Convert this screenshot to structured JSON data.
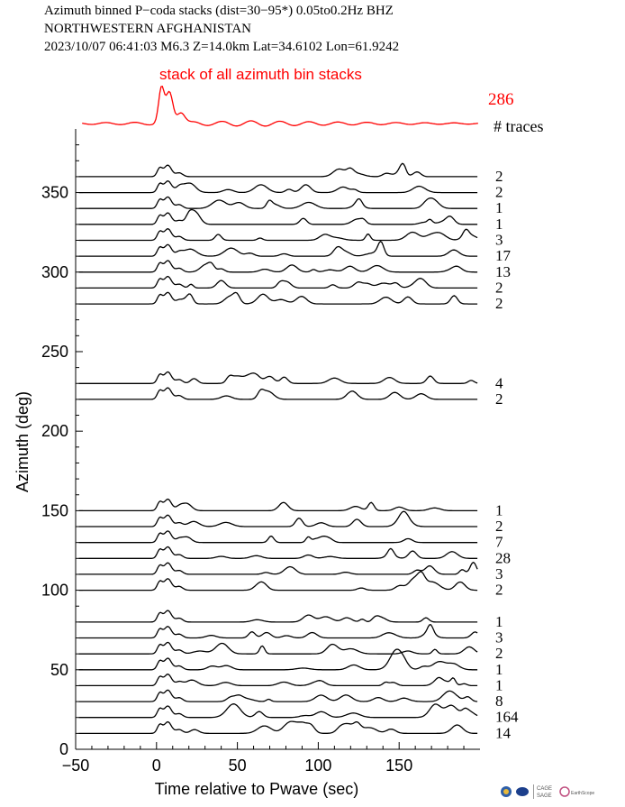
{
  "header": {
    "line1": "Azimuth binned P−coda stacks (dist=30−95*)  0.05to0.2Hz  BHZ",
    "line2": "NORTHWESTERN AFGHANISTAN",
    "line3": "2023/10/07  06:41:03  M6.3  Z=14.0km Lat=34.6102 Lon=61.9242"
  },
  "stack": {
    "title": "stack of all azimuth bin stacks",
    "total_traces": "286",
    "traces_label": "# traces",
    "color": "#ff0000"
  },
  "logos": {
    "cage_sage": "CAGE\nSAGE",
    "earthscope": "EarthScope"
  },
  "chart_data": {
    "type": "line",
    "xlabel": "Time relative to Pwave (sec)",
    "ylabel": "Azimuth (deg)",
    "xlim": [
      -50,
      200
    ],
    "ylim": [
      0,
      390
    ],
    "xticks": [
      -50,
      0,
      50,
      100,
      150
    ],
    "xtick_labels": [
      "−50",
      "0",
      "50",
      "100",
      "150"
    ],
    "yticks": [
      0,
      50,
      100,
      150,
      200,
      250,
      300,
      350
    ],
    "ytick_labels": [
      "0",
      "50",
      "100",
      "150",
      "200",
      "250",
      "300",
      "350"
    ],
    "trace_color": "#000000",
    "bins": [
      {
        "azimuth": 360,
        "count": "2"
      },
      {
        "azimuth": 350,
        "count": "2"
      },
      {
        "azimuth": 340,
        "count": "1"
      },
      {
        "azimuth": 330,
        "count": "1"
      },
      {
        "azimuth": 320,
        "count": "3"
      },
      {
        "azimuth": 310,
        "count": "17"
      },
      {
        "azimuth": 300,
        "count": "13"
      },
      {
        "azimuth": 290,
        "count": "2"
      },
      {
        "azimuth": 280,
        "count": "2"
      },
      {
        "azimuth": 230,
        "count": "4"
      },
      {
        "azimuth": 220,
        "count": "2"
      },
      {
        "azimuth": 150,
        "count": "1"
      },
      {
        "azimuth": 140,
        "count": "2"
      },
      {
        "azimuth": 130,
        "count": "7"
      },
      {
        "azimuth": 120,
        "count": "28"
      },
      {
        "azimuth": 110,
        "count": "3"
      },
      {
        "azimuth": 100,
        "count": "2"
      },
      {
        "azimuth": 80,
        "count": "1"
      },
      {
        "azimuth": 70,
        "count": "3"
      },
      {
        "azimuth": 60,
        "count": "2"
      },
      {
        "azimuth": 50,
        "count": "1"
      },
      {
        "azimuth": 40,
        "count": "1"
      },
      {
        "azimuth": 30,
        "count": "8"
      },
      {
        "azimuth": 20,
        "count": "164"
      },
      {
        "azimuth": 10,
        "count": "14"
      }
    ]
  }
}
